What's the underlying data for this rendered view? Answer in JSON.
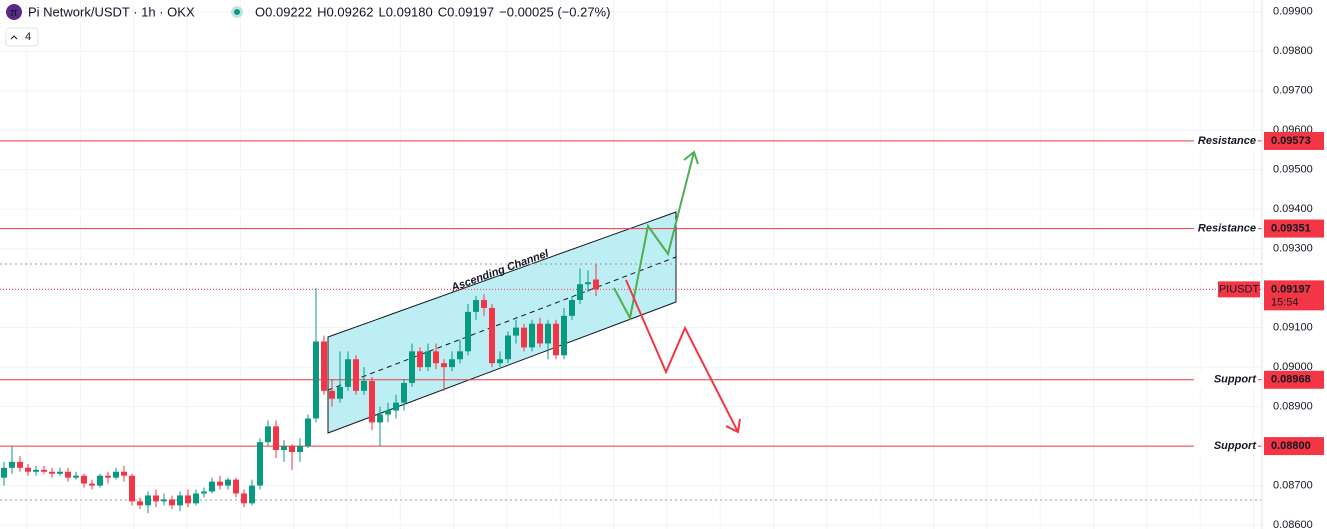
{
  "header": {
    "symbol": "Pi Network/USDT · 1h · OKX",
    "ohlc": [
      {
        "label": "O",
        "value": "0.09222"
      },
      {
        "label": "H",
        "value": "0.09262"
      },
      {
        "label": "L",
        "value": "0.09180"
      },
      {
        "label": "C",
        "value": "0.09197"
      }
    ],
    "change": "−0.00025 (−0.27%)",
    "indicator_count": "4"
  },
  "chart_data": {
    "type": "candlestick",
    "up_color": "#089981",
    "down_color": "#f23645",
    "ylim": [
      0.0859,
      0.0993
    ],
    "yticks": [
      {
        "value": 0.099,
        "label": "0.09900"
      },
      {
        "value": 0.098,
        "label": "0.09800"
      },
      {
        "value": 0.097,
        "label": "0.09700"
      },
      {
        "value": 0.096,
        "label": "0.09600"
      },
      {
        "value": 0.095,
        "label": "0.09500"
      },
      {
        "value": 0.094,
        "label": "0.09400"
      },
      {
        "value": 0.093,
        "label": "0.09300"
      },
      {
        "value": 0.092,
        "label": "0.09200"
      },
      {
        "value": 0.091,
        "label": "0.09100"
      },
      {
        "value": 0.09,
        "label": "0.09000"
      },
      {
        "value": 0.089,
        "label": "0.08900"
      },
      {
        "value": 0.088,
        "label": "0.08800"
      },
      {
        "value": 0.087,
        "label": "0.08700"
      },
      {
        "value": 0.086,
        "label": "0.08600"
      }
    ],
    "open": [
      0.0872,
      0.08745,
      0.0876,
      0.08745,
      0.08735,
      0.0874,
      0.08735,
      0.0873,
      0.08735,
      0.0872,
      0.08725,
      0.08705,
      0.087,
      0.08725,
      0.0872,
      0.08735,
      0.08725,
      0.0866,
      0.0865,
      0.08675,
      0.0866,
      0.08665,
      0.0865,
      0.08675,
      0.08655,
      0.0868,
      0.08685,
      0.0871,
      0.087,
      0.08715,
      0.0868,
      0.08655,
      0.087,
      0.0881,
      0.0885,
      0.0879,
      0.088,
      0.08785,
      0.088,
      0.0887,
      0.09065,
      0.0894,
      0.0892,
      0.0895,
      0.0902,
      0.0894,
      0.08965,
      0.0886,
      0.0888,
      0.0889,
      0.0891,
      0.0896,
      0.0904,
      0.09,
      0.0904,
      0.0901,
      0.09,
      0.0902,
      0.0904,
      0.0914,
      0.0917,
      0.0915,
      0.0901,
      0.0902,
      0.0908,
      0.091,
      0.0905,
      0.0911,
      0.0906,
      0.0911,
      0.0903,
      0.0913,
      0.0917,
      0.0921,
      0.09222
    ],
    "high": [
      0.0876,
      0.088,
      0.08775,
      0.08755,
      0.0875,
      0.0875,
      0.08745,
      0.08745,
      0.08745,
      0.08735,
      0.0873,
      0.08715,
      0.0873,
      0.08735,
      0.08745,
      0.0875,
      0.0873,
      0.0867,
      0.08685,
      0.0869,
      0.0868,
      0.08675,
      0.08685,
      0.0869,
      0.0869,
      0.08695,
      0.0872,
      0.08725,
      0.0872,
      0.0872,
      0.0869,
      0.08715,
      0.0882,
      0.08865,
      0.08865,
      0.08815,
      0.08805,
      0.0882,
      0.0888,
      0.092,
      0.0908,
      0.0897,
      0.0904,
      0.0904,
      0.0903,
      0.09,
      0.08975,
      0.089,
      0.0891,
      0.0893,
      0.0897,
      0.0906,
      0.0905,
      0.0906,
      0.0906,
      0.0902,
      0.0904,
      0.0907,
      0.0916,
      0.0918,
      0.09185,
      0.0916,
      0.0904,
      0.0909,
      0.0912,
      0.0911,
      0.0912,
      0.09125,
      0.0912,
      0.0912,
      0.0915,
      0.0918,
      0.0925,
      0.09245,
      0.09262
    ],
    "low": [
      0.087,
      0.0873,
      0.08735,
      0.08725,
      0.08725,
      0.0873,
      0.0872,
      0.08725,
      0.0871,
      0.08715,
      0.08695,
      0.0869,
      0.08695,
      0.08705,
      0.08715,
      0.0871,
      0.0865,
      0.0864,
      0.0863,
      0.08645,
      0.0865,
      0.0864,
      0.08635,
      0.08645,
      0.0865,
      0.0867,
      0.0868,
      0.0869,
      0.0869,
      0.0867,
      0.08645,
      0.0865,
      0.0869,
      0.088,
      0.0877,
      0.0876,
      0.0874,
      0.0876,
      0.08795,
      0.0886,
      0.0893,
      0.089,
      0.0891,
      0.0894,
      0.0893,
      0.0893,
      0.0884,
      0.088,
      0.0886,
      0.0887,
      0.0889,
      0.0895,
      0.0899,
      0.0899,
      0.08995,
      0.0894,
      0.0899,
      0.0901,
      0.0903,
      0.0912,
      0.0913,
      0.09,
      0.09,
      0.0901,
      0.0906,
      0.0904,
      0.0904,
      0.0905,
      0.0902,
      0.0902,
      0.0902,
      0.0912,
      0.0916,
      0.0919,
      0.0918
    ],
    "close": [
      0.08745,
      0.0876,
      0.08745,
      0.08735,
      0.0874,
      0.08735,
      0.0873,
      0.08735,
      0.0872,
      0.08725,
      0.08705,
      0.087,
      0.08725,
      0.0872,
      0.08735,
      0.08725,
      0.0866,
      0.0865,
      0.08675,
      0.0866,
      0.08665,
      0.0865,
      0.08675,
      0.08655,
      0.0868,
      0.08685,
      0.0871,
      0.087,
      0.08715,
      0.0868,
      0.08655,
      0.087,
      0.0881,
      0.0885,
      0.0879,
      0.088,
      0.08785,
      0.088,
      0.0887,
      0.09065,
      0.0894,
      0.0892,
      0.0895,
      0.0902,
      0.0894,
      0.08965,
      0.0886,
      0.0888,
      0.0889,
      0.0891,
      0.0896,
      0.0904,
      0.09,
      0.0904,
      0.0901,
      0.09,
      0.0902,
      0.0904,
      0.0914,
      0.0917,
      0.0915,
      0.0901,
      0.0902,
      0.0908,
      0.091,
      0.0905,
      0.0911,
      0.0906,
      0.0911,
      0.0903,
      0.0913,
      0.0917,
      0.0921,
      0.09215,
      0.09197
    ],
    "levels": [
      {
        "name": "Resistance",
        "value": 0.09573,
        "value_label": "0.09573"
      },
      {
        "name": "Resistance",
        "value": 0.09351,
        "value_label": "0.09351"
      },
      {
        "name": "Support",
        "value": 0.08968,
        "value_label": "0.08968"
      },
      {
        "name": "Support",
        "value": 0.088,
        "value_label": "0.08800"
      }
    ],
    "current_price": {
      "name": "PIUSDT",
      "value": 0.09197,
      "value_label": "0.09197",
      "countdown": "15:54"
    },
    "annotation": "Ascending Channel"
  }
}
